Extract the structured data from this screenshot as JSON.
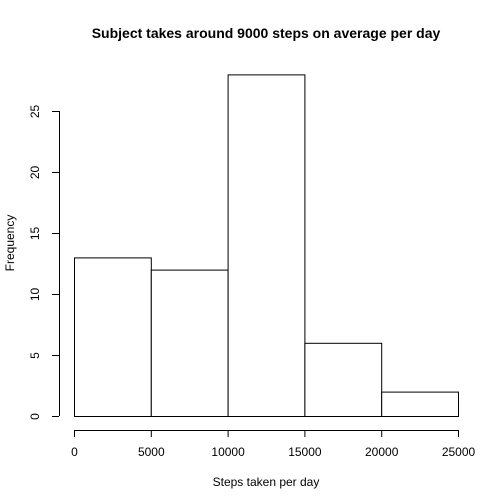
{
  "chart_data": {
    "type": "bar",
    "title": "Subject takes around 9000 steps on average per day",
    "xlabel": "Steps taken per day",
    "ylabel": "Frequency",
    "bins": [
      {
        "from": 0,
        "to": 5000,
        "count": 13
      },
      {
        "from": 5000,
        "to": 10000,
        "count": 12
      },
      {
        "from": 10000,
        "to": 15000,
        "count": 28
      },
      {
        "from": 15000,
        "to": 20000,
        "count": 6
      },
      {
        "from": 20000,
        "to": 25000,
        "count": 2
      }
    ],
    "xlim": [
      0,
      25000
    ],
    "ylim": [
      0,
      28
    ],
    "xticks": [
      0,
      5000,
      10000,
      15000,
      20000,
      25000
    ],
    "yticks": [
      0,
      5,
      10,
      15,
      20,
      25
    ],
    "grid": false,
    "bar_fill": "#ffffff",
    "bar_stroke": "#000000"
  }
}
